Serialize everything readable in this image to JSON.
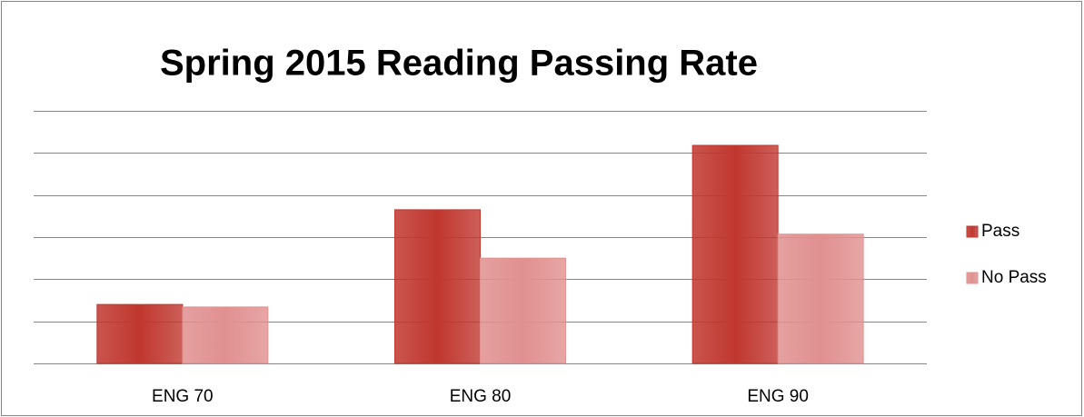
{
  "chart_data": {
    "type": "bar",
    "title": "Spring 2015 Reading Passing Rate",
    "categories": [
      "ENG 70",
      "ENG 80",
      "ENG 90"
    ],
    "series": [
      {
        "name": "Pass",
        "color": "#c0372f",
        "values": [
          1.4,
          3.65,
          5.18
        ]
      },
      {
        "name": "No Pass",
        "color": "#e0908f",
        "values": [
          1.34,
          2.5,
          3.07
        ]
      }
    ],
    "ylim": [
      0,
      6
    ],
    "yticks": [
      0,
      1,
      2,
      3,
      4,
      5,
      6
    ],
    "grid": true,
    "legend": "right"
  }
}
